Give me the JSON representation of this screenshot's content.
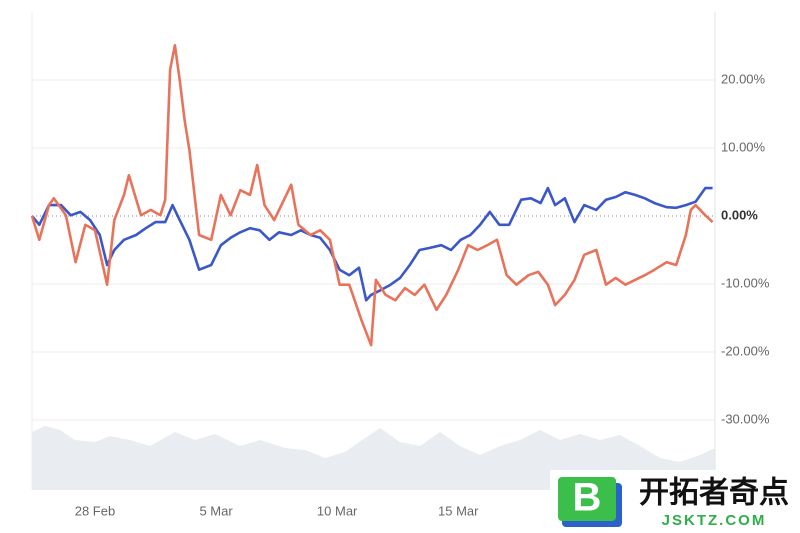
{
  "chart_data": {
    "type": "line",
    "xlim": [
      -2.6,
      25.6
    ],
    "xticks": [
      {
        "value": 0,
        "label": "28 Feb"
      },
      {
        "value": 5,
        "label": "5 Mar"
      },
      {
        "value": 10,
        "label": "10 Mar"
      },
      {
        "value": 15,
        "label": "15 Mar"
      }
    ],
    "ylim": [
      -40,
      30
    ],
    "yticks": [
      {
        "value": -30,
        "label": "-30.00%"
      },
      {
        "value": -20,
        "label": "-20.00%"
      },
      {
        "value": -10,
        "label": "-10.00%"
      },
      {
        "value": 0,
        "label": "0.00%"
      },
      {
        "value": 10,
        "label": "10.00%"
      },
      {
        "value": 20,
        "label": "20.00%"
      }
    ],
    "y_axis_position": "right",
    "grid": true,
    "series": [
      {
        "color": "#3b57c9",
        "x": [
          -2.6,
          -2.3,
          -1.9,
          -1.4,
          -1.0,
          -0.6,
          -0.2,
          0.2,
          0.5,
          0.8,
          1.2,
          1.7,
          2.1,
          2.5,
          2.9,
          3.2,
          3.5,
          3.9,
          4.3,
          4.8,
          5.2,
          5.6,
          6.0,
          6.4,
          6.8,
          7.2,
          7.6,
          8.1,
          8.5,
          8.9,
          9.3,
          9.7,
          10.1,
          10.5,
          10.9,
          11.2,
          11.4,
          11.8,
          12.2,
          12.6,
          13.0,
          13.4,
          13.8,
          14.3,
          14.7,
          15.1,
          15.5,
          15.9,
          16.3,
          16.7,
          17.1,
          17.6,
          18.0,
          18.4,
          18.7,
          19.0,
          19.4,
          19.8,
          20.2,
          20.7,
          21.1,
          21.5,
          21.9,
          22.3,
          22.7,
          23.1,
          23.6,
          24.0,
          24.4,
          24.8,
          25.2,
          25.5
        ],
        "values": [
          0,
          -1.3,
          1.6,
          1.6,
          0.1,
          0.6,
          -0.6,
          -2.8,
          -7.2,
          -5.0,
          -3.5,
          -2.8,
          -1.8,
          -0.9,
          -0.9,
          1.6,
          -0.6,
          -3.5,
          -7.9,
          -7.2,
          -4.3,
          -3.2,
          -2.4,
          -1.8,
          -2.1,
          -3.5,
          -2.4,
          -2.8,
          -2.1,
          -2.8,
          -3.2,
          -5.0,
          -7.9,
          -8.7,
          -7.6,
          -12.4,
          -11.6,
          -10.9,
          -10.1,
          -9.1,
          -7.2,
          -5.0,
          -4.7,
          -4.3,
          -5.0,
          -3.5,
          -2.8,
          -1.3,
          0.6,
          -1.3,
          -1.3,
          2.4,
          2.6,
          1.9,
          4.1,
          1.6,
          2.6,
          -0.9,
          1.6,
          0.9,
          2.4,
          2.8,
          3.5,
          3.1,
          2.6,
          1.9,
          1.3,
          1.2,
          1.6,
          2.1,
          4.1,
          4.1
        ]
      },
      {
        "color": "#e8735a",
        "x": [
          -2.6,
          -2.3,
          -1.9,
          -1.7,
          -1.2,
          -0.8,
          -0.4,
          0,
          0.5,
          0.8,
          1.2,
          1.4,
          1.9,
          2.3,
          2.7,
          2.9,
          3.1,
          3.3,
          3.5,
          3.7,
          3.9,
          4.3,
          4.8,
          5.2,
          5.6,
          6.0,
          6.4,
          6.7,
          7.0,
          7.4,
          7.9,
          8.1,
          8.4,
          8.9,
          9.3,
          9.7,
          10.1,
          10.5,
          11.0,
          11.4,
          11.6,
          12.0,
          12.4,
          12.8,
          13.2,
          13.6,
          14.1,
          14.5,
          15.0,
          15.4,
          15.8,
          16.2,
          16.6,
          17.0,
          17.4,
          17.9,
          18.3,
          18.7,
          19.0,
          19.4,
          19.8,
          20.2,
          20.7,
          21.1,
          21.5,
          21.9,
          22.3,
          22.7,
          23.1,
          23.6,
          24.0,
          24.4,
          24.6,
          24.8,
          25.2,
          25.5
        ],
        "values": [
          0,
          -3.5,
          1.6,
          2.6,
          0.1,
          -6.8,
          -1.3,
          -2.1,
          -10.1,
          -0.6,
          3.1,
          6.0,
          0.1,
          0.9,
          0.1,
          2.4,
          21.5,
          25.1,
          20.0,
          14.1,
          9.7,
          -2.8,
          -3.5,
          3.1,
          0.1,
          3.8,
          3.1,
          7.5,
          1.6,
          -0.6,
          3.1,
          4.6,
          -1.3,
          -2.8,
          -2.1,
          -3.5,
          -10.1,
          -10.1,
          -15.3,
          -19.0,
          -9.4,
          -11.6,
          -12.4,
          -10.6,
          -11.6,
          -10.1,
          -13.8,
          -11.6,
          -7.9,
          -4.3,
          -5.0,
          -4.3,
          -3.5,
          -8.7,
          -10.1,
          -8.7,
          -8.2,
          -10.1,
          -13.1,
          -11.6,
          -9.4,
          -5.7,
          -5.0,
          -10.1,
          -9.1,
          -10.1,
          -9.4,
          -8.7,
          -7.9,
          -6.8,
          -7.2,
          -2.8,
          0.9,
          1.6,
          0.1,
          -0.9
        ]
      }
    ]
  },
  "watermark": {
    "icon": "B",
    "title": "开拓者奇点",
    "url": "JSKTZ.COM"
  }
}
